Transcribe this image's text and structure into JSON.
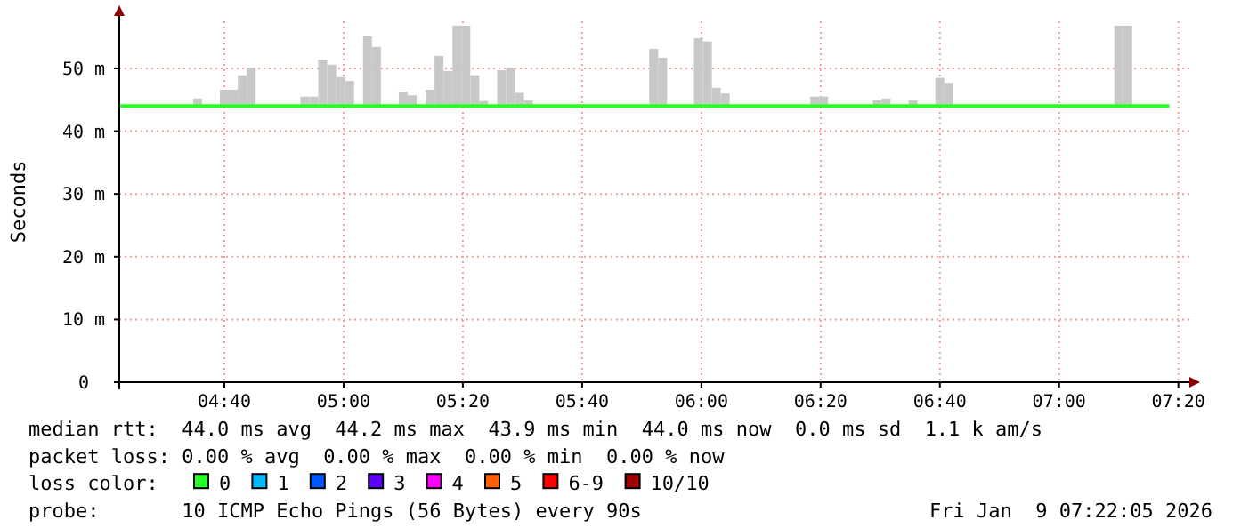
{
  "chart_data": {
    "type": "bar",
    "ylabel": "Seconds",
    "legend_title": "loss color:",
    "x": [
      4.5917,
      4.6667,
      4.6917,
      4.7167,
      4.7417,
      4.8917,
      4.9167,
      4.9417,
      4.9667,
      4.9917,
      5.0167,
      5.0667,
      5.0917,
      5.1667,
      5.1917,
      5.2417,
      5.2667,
      5.2917,
      5.3167,
      5.3417,
      5.3667,
      5.3917,
      5.4417,
      5.4667,
      5.4917,
      5.5167,
      5.8667,
      5.8917,
      5.9917,
      6.0167,
      6.0417,
      6.0667,
      6.3167,
      6.3417,
      6.4917,
      6.5167,
      6.5917,
      6.6667,
      6.6917,
      7.1667,
      7.1917
    ],
    "series": [
      {
        "color": "#c8c8c8",
        "base": [
          44,
          44,
          44,
          44,
          44,
          44,
          44,
          44,
          44,
          44,
          44,
          44,
          44,
          44,
          44,
          44,
          44,
          44,
          44,
          44,
          44,
          44,
          44,
          44,
          44,
          44,
          44,
          44,
          44,
          44,
          44,
          44,
          44,
          44,
          44,
          44,
          44,
          44,
          44,
          44,
          44
        ],
        "values": [
          1.2,
          2.6,
          2.6,
          4.9,
          6.1,
          1.5,
          1.5,
          7.4,
          6.6,
          4.6,
          4.0,
          11.1,
          9.4,
          2.3,
          1.7,
          2.6,
          8.0,
          5.6,
          12.8,
          12.8,
          4.9,
          0.8,
          5.7,
          6.1,
          2.1,
          0.9,
          9.1,
          7.7,
          10.8,
          10.3,
          2.9,
          2.0,
          1.5,
          1.5,
          0.9,
          1.2,
          0.9,
          4.5,
          3.7,
          12.8,
          12.8
        ]
      },
      {
        "type": "line",
        "name": "0",
        "color": "#26ff26",
        "x": [
          4.373,
          7.308
        ],
        "values": [
          44.0,
          44.0
        ]
      },
      {
        "type": "line",
        "name": "1",
        "color": "#00b8ff",
        "values": [
          null,
          null,
          null,
          null,
          null,
          null,
          null,
          null,
          null,
          null,
          null,
          null,
          null,
          null,
          null,
          null,
          null,
          null,
          null,
          null,
          null,
          null,
          null,
          null,
          null,
          null,
          null,
          null,
          null,
          null,
          null,
          null,
          null,
          null,
          null,
          null,
          null,
          null,
          null,
          null,
          null
        ]
      },
      {
        "type": "line",
        "name": "2",
        "color": "#0059ff",
        "values": [
          null,
          null,
          null,
          null,
          null,
          null,
          null,
          null,
          null,
          null,
          null,
          null,
          null,
          null,
          null,
          null,
          null,
          null,
          null,
          null,
          null,
          null,
          null,
          null,
          null,
          null,
          null,
          null,
          null,
          null,
          null,
          null,
          null,
          null,
          null,
          null,
          null,
          null,
          null,
          null,
          null
        ]
      },
      {
        "type": "line",
        "name": "3",
        "color": "#5e00ff",
        "values": [
          null,
          null,
          null,
          null,
          null,
          null,
          null,
          null,
          null,
          null,
          null,
          null,
          null,
          null,
          null,
          null,
          null,
          null,
          null,
          null,
          null,
          null,
          null,
          null,
          null,
          null,
          null,
          null,
          null,
          null,
          null,
          null,
          null,
          null,
          null,
          null,
          null,
          null,
          null,
          null,
          null
        ]
      },
      {
        "type": "line",
        "name": "4",
        "color": "#ff00ff",
        "values": [
          null,
          null,
          null,
          null,
          null,
          null,
          null,
          null,
          null,
          null,
          null,
          null,
          null,
          null,
          null,
          null,
          null,
          null,
          null,
          null,
          null,
          null,
          null,
          null,
          null,
          null,
          null,
          null,
          null,
          null,
          null,
          null,
          null,
          null,
          null,
          null,
          null,
          null,
          null,
          null,
          null
        ]
      },
      {
        "type": "line",
        "name": "5",
        "color": "#ff5e00",
        "values": [
          null,
          null,
          null,
          null,
          null,
          null,
          null,
          null,
          null,
          null,
          null,
          null,
          null,
          null,
          null,
          null,
          null,
          null,
          null,
          null,
          null,
          null,
          null,
          null,
          null,
          null,
          null,
          null,
          null,
          null,
          null,
          null,
          null,
          null,
          null,
          null,
          null,
          null,
          null,
          null,
          null
        ]
      },
      {
        "type": "line",
        "name": "6-9",
        "color": "#ff0000",
        "values": [
          null,
          null,
          null,
          null,
          null,
          null,
          null,
          null,
          null,
          null,
          null,
          null,
          null,
          null,
          null,
          null,
          null,
          null,
          null,
          null,
          null,
          null,
          null,
          null,
          null,
          null,
          null,
          null,
          null,
          null,
          null,
          null,
          null,
          null,
          null,
          null,
          null,
          null,
          null,
          null,
          null
        ]
      },
      {
        "type": "line",
        "name": "10/10",
        "color": "#a10000",
        "values": [
          null,
          null,
          null,
          null,
          null,
          null,
          null,
          null,
          null,
          null,
          null,
          null,
          null,
          null,
          null,
          null,
          null,
          null,
          null,
          null,
          null,
          null,
          null,
          null,
          null,
          null,
          null,
          null,
          null,
          null,
          null,
          null,
          null,
          null,
          null,
          null,
          null,
          null,
          null,
          null,
          null
        ]
      }
    ],
    "xlim": [
      4.373,
      7.364
    ],
    "xticks": [
      {
        "value": 4.6667,
        "label": "04:40"
      },
      {
        "value": 5.0,
        "label": "05:00"
      },
      {
        "value": 5.3333,
        "label": "05:20"
      },
      {
        "value": 5.6667,
        "label": "05:40"
      },
      {
        "value": 6.0,
        "label": "06:00"
      },
      {
        "value": 6.3333,
        "label": "06:20"
      },
      {
        "value": 6.6667,
        "label": "06:40"
      },
      {
        "value": 7.0,
        "label": "07:00"
      },
      {
        "value": 7.3333,
        "label": "07:20"
      }
    ],
    "ylim": [
      0,
      57.5
    ],
    "yticks": [
      0,
      {
        "value": 10,
        "label": "10 m"
      },
      {
        "value": 20,
        "label": "20 m"
      },
      {
        "value": 30,
        "label": "30 m"
      },
      {
        "value": 40,
        "label": "40 m"
      },
      {
        "value": 50,
        "label": "50 m"
      }
    ],
    "grid": true,
    "legend": "bottom",
    "annotations": [
      "median rtt:  44.0 ms avg  44.2 ms max  43.9 ms min  44.0 ms now  0.0 ms sd  1.1 k am/s",
      "packet loss: 0.00 % avg  0.00 % max  0.00 % min  0.00 % now",
      "probe:       10 ICMP Echo Pings (56 Bytes) every 90s",
      "Fri Jan  9 07:22:05 2026"
    ]
  }
}
